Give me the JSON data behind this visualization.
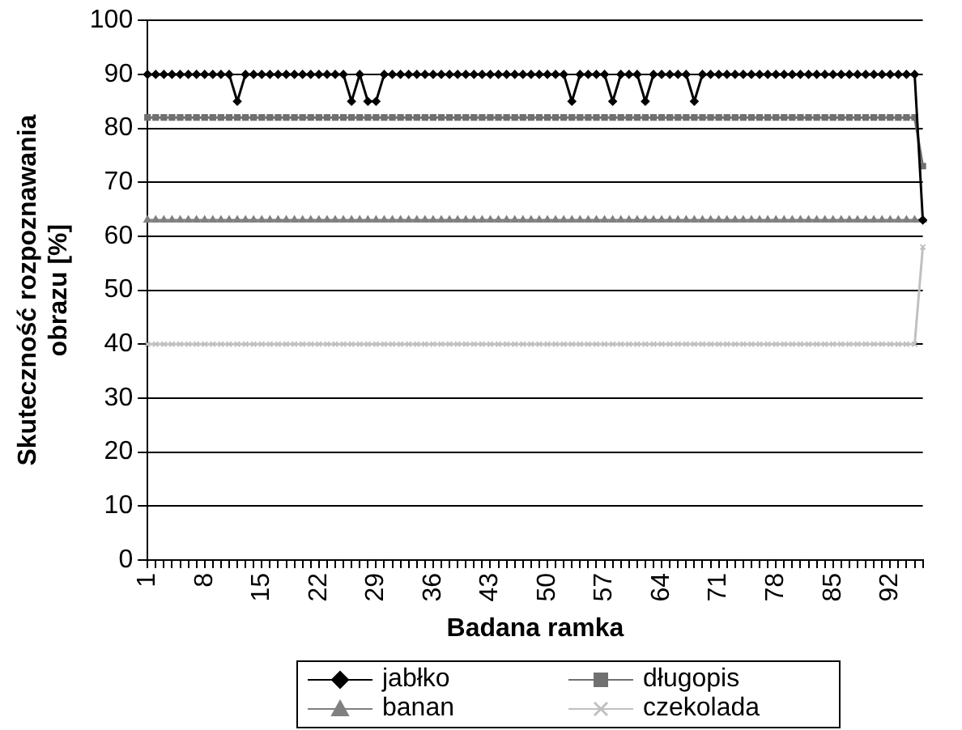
{
  "chart_data": {
    "type": "line",
    "xlabel": "Badana ramka",
    "ylabel": "Skuteczność rozpoznawania obrazu [%]",
    "categories": [
      "1",
      null,
      null,
      null,
      null,
      null,
      null,
      "8",
      null,
      null,
      null,
      null,
      null,
      null,
      "15",
      null,
      null,
      null,
      null,
      null,
      null,
      "22",
      null,
      null,
      null,
      null,
      null,
      null,
      "29",
      null,
      null,
      null,
      null,
      null,
      null,
      "36",
      null,
      null,
      null,
      null,
      null,
      null,
      "43",
      null,
      null,
      null,
      null,
      null,
      null,
      "50",
      null,
      null,
      null,
      null,
      null,
      null,
      "57",
      null,
      null,
      null,
      null,
      null,
      null,
      "64",
      null,
      null,
      null,
      null,
      null,
      null,
      "71",
      null,
      null,
      null,
      null,
      null,
      null,
      "78",
      null,
      null,
      null,
      null,
      null,
      null,
      "85",
      null,
      null,
      null,
      null,
      null,
      null,
      "92",
      null,
      null,
      null,
      null
    ],
    "ylim": [
      0,
      100
    ],
    "yticks": [
      0,
      10,
      20,
      30,
      40,
      50,
      60,
      70,
      80,
      90,
      100
    ],
    "grid": "y",
    "legend": "bottom",
    "line_style": "solid",
    "series": [
      {
        "name": "jabłko",
        "color": "#000000",
        "marker": "diamond",
        "values": [
          90,
          90,
          90,
          90,
          90,
          90,
          90,
          90,
          90,
          90,
          90,
          85,
          90,
          90,
          90,
          90,
          90,
          90,
          90,
          90,
          90,
          90,
          90,
          90,
          90,
          85,
          90,
          85,
          85,
          90,
          90,
          90,
          90,
          90,
          90,
          90,
          90,
          90,
          90,
          90,
          90,
          90,
          90,
          90,
          90,
          90,
          90,
          90,
          90,
          90,
          90,
          90,
          85,
          90,
          90,
          90,
          90,
          85,
          90,
          90,
          90,
          85,
          90,
          90,
          90,
          90,
          90,
          85,
          90,
          90,
          90,
          90,
          90,
          90,
          90,
          90,
          90,
          90,
          90,
          90,
          90,
          90,
          90,
          90,
          90,
          90,
          90,
          90,
          90,
          90,
          90,
          90,
          90,
          90,
          90,
          63
        ]
      },
      {
        "name": "długopis",
        "color": "#707070",
        "marker": "square",
        "values": [
          82,
          82,
          82,
          82,
          82,
          82,
          82,
          82,
          82,
          82,
          82,
          82,
          82,
          82,
          82,
          82,
          82,
          82,
          82,
          82,
          82,
          82,
          82,
          82,
          82,
          82,
          82,
          82,
          82,
          82,
          82,
          82,
          82,
          82,
          82,
          82,
          82,
          82,
          82,
          82,
          82,
          82,
          82,
          82,
          82,
          82,
          82,
          82,
          82,
          82,
          82,
          82,
          82,
          82,
          82,
          82,
          82,
          82,
          82,
          82,
          82,
          82,
          82,
          82,
          82,
          82,
          82,
          82,
          82,
          82,
          82,
          82,
          82,
          82,
          82,
          82,
          82,
          82,
          82,
          82,
          82,
          82,
          82,
          82,
          82,
          82,
          82,
          82,
          82,
          82,
          82,
          82,
          82,
          82,
          82,
          73
        ]
      },
      {
        "name": "banan",
        "color": "#808080",
        "marker": "triangle",
        "values": [
          63,
          63,
          63,
          63,
          63,
          63,
          63,
          63,
          63,
          63,
          63,
          63,
          63,
          63,
          63,
          63,
          63,
          63,
          63,
          63,
          63,
          63,
          63,
          63,
          63,
          63,
          63,
          63,
          63,
          63,
          63,
          63,
          63,
          63,
          63,
          63,
          63,
          63,
          63,
          63,
          63,
          63,
          63,
          63,
          63,
          63,
          63,
          63,
          63,
          63,
          63,
          63,
          63,
          63,
          63,
          63,
          63,
          63,
          63,
          63,
          63,
          63,
          63,
          63,
          63,
          63,
          63,
          63,
          63,
          63,
          63,
          63,
          63,
          63,
          63,
          63,
          63,
          63,
          63,
          63,
          63,
          63,
          63,
          63,
          63,
          63,
          63,
          63,
          63,
          63,
          63,
          63,
          63,
          63,
          63,
          63
        ]
      },
      {
        "name": "czekolada",
        "color": "#c0c0c0",
        "marker": "cross",
        "values": [
          40,
          40,
          40,
          40,
          40,
          40,
          40,
          40,
          40,
          40,
          40,
          40,
          40,
          40,
          40,
          40,
          40,
          40,
          40,
          40,
          40,
          40,
          40,
          40,
          40,
          40,
          40,
          40,
          40,
          40,
          40,
          40,
          40,
          40,
          40,
          40,
          40,
          40,
          40,
          40,
          40,
          40,
          40,
          40,
          40,
          40,
          40,
          40,
          40,
          40,
          40,
          40,
          40,
          40,
          40,
          40,
          40,
          40,
          40,
          40,
          40,
          40,
          40,
          40,
          40,
          40,
          40,
          40,
          40,
          40,
          40,
          40,
          40,
          40,
          40,
          40,
          40,
          40,
          40,
          40,
          40,
          40,
          40,
          40,
          40,
          40,
          40,
          40,
          40,
          40,
          40,
          40,
          40,
          40,
          40,
          58
        ]
      }
    ]
  }
}
